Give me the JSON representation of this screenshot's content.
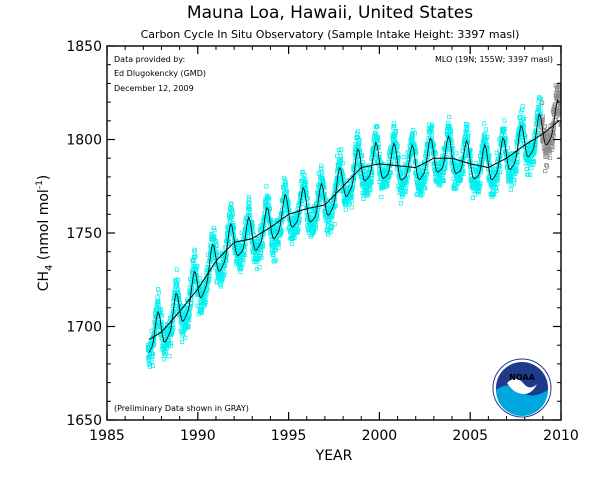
{
  "chart_data": {
    "type": "scatter",
    "title": "Mauna Loa, Hawaii, United States",
    "subtitle": "Carbon Cycle In Situ Observatory (Sample Intake Height: 3397 masl)",
    "xlabel": "YEAR",
    "ylabel_main": "CH",
    "ylabel_sub": "4",
    "ylabel_units_open": " (nmol mol",
    "ylabel_units_sup": "-1",
    "ylabel_units_close": ")",
    "xlim": [
      1985,
      2010
    ],
    "ylim": [
      1650,
      1850
    ],
    "x_ticks": [
      "1985",
      "1990",
      "1995",
      "2000",
      "2005",
      "2010"
    ],
    "y_ticks": [
      "1650",
      "1700",
      "1750",
      "1800",
      "1850"
    ],
    "x_tick_values": [
      1985,
      1990,
      1995,
      2000,
      2005,
      2010
    ],
    "y_tick_values": [
      1650,
      1700,
      1750,
      1800,
      1850
    ],
    "grid": false,
    "annotations": {
      "credit_line1": "Data provided by:",
      "credit_line2": "Ed Dlugokencky (GMD)",
      "credit_line3": "December 12, 2009",
      "station": "MLO (19N; 155W; 3397 masl)",
      "preliminary_note": "(Preliminary Data shown in GRAY)"
    },
    "logo_text": "NOAA",
    "colors": {
      "final_points": "#00f0f0",
      "preliminary_points": "#8a8a8a",
      "monthly_line": "#000000",
      "trend_line": "#000000",
      "logo_dark": "#1f3a8a",
      "logo_light": "#00a6e0"
    },
    "series": [
      {
        "type": "line",
        "style": "smoothed trend",
        "x": [
          1987.3,
          1988.0,
          1989.0,
          1990.0,
          1991.0,
          1992.0,
          1993.0,
          1994.0,
          1995.0,
          1996.0,
          1997.0,
          1998.0,
          1999.0,
          2000.0,
          2001.0,
          2002.0,
          2003.0,
          2004.0,
          2005.0,
          2006.0,
          2007.0,
          2008.0,
          2009.0,
          2009.9
        ],
        "values": [
          1693,
          1697,
          1708,
          1720,
          1735,
          1745,
          1747,
          1753,
          1760,
          1763,
          1765,
          1775,
          1785,
          1787,
          1786,
          1785,
          1790,
          1790,
          1787,
          1785,
          1790,
          1797,
          1803,
          1810
        ]
      },
      {
        "type": "scatter",
        "style": "in situ data, final",
        "x_range": [
          1987.25,
          2009.0
        ],
        "y_range_approx": [
          1660,
          1843
        ]
      },
      {
        "type": "scatter",
        "style": "in situ data, preliminary",
        "x_range": [
          2008.9,
          2010.0
        ],
        "y_range_approx": [
          1780,
          1842
        ]
      }
    ]
  }
}
